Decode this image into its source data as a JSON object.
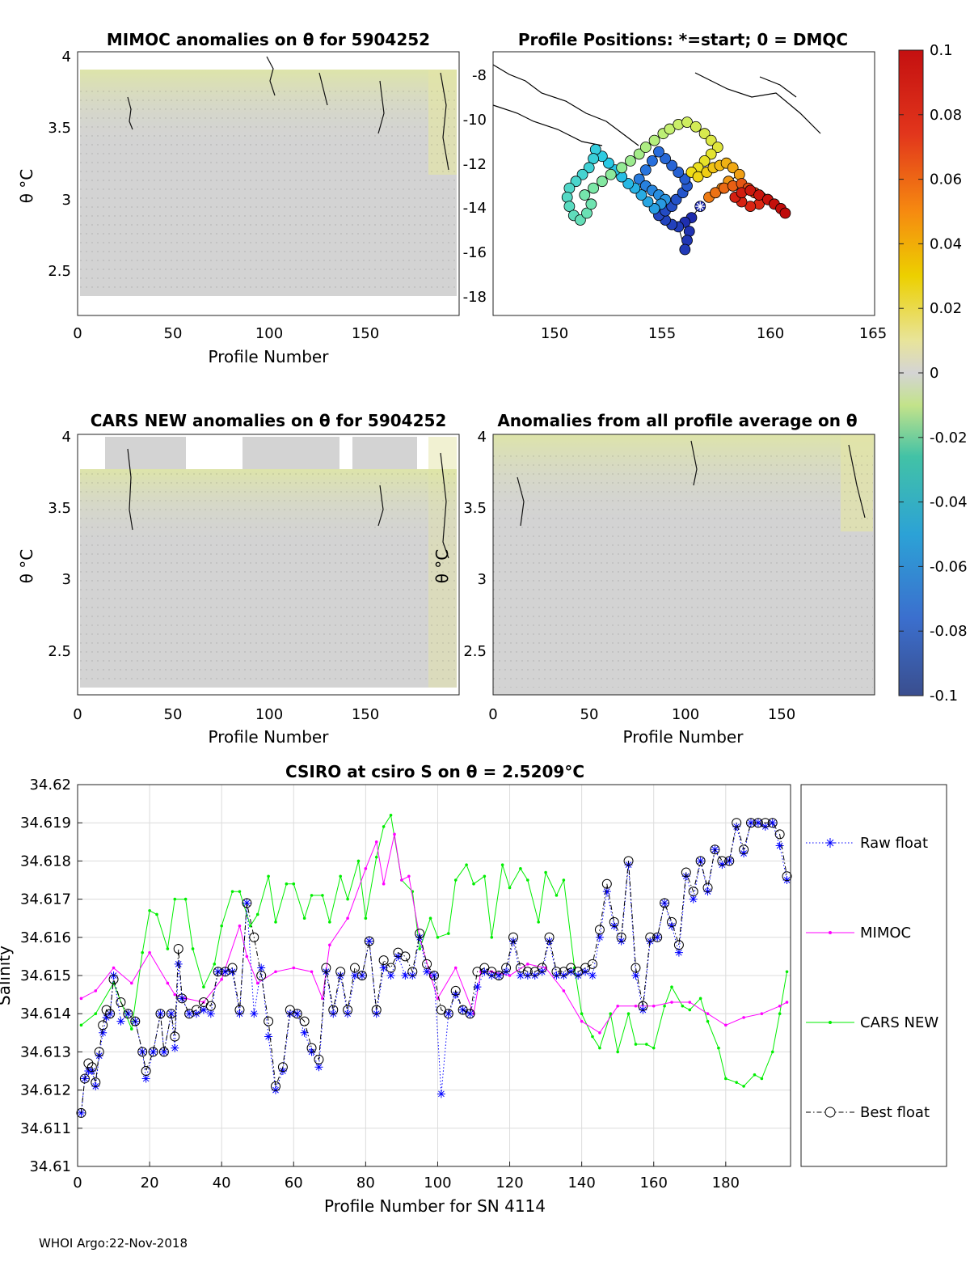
{
  "footer": "WHOI Argo:22-Nov-2018",
  "panels": {
    "mimoc": {
      "title": "MIMOC anomalies on θ  for 5904252",
      "ylabel": "θ °C",
      "xlabel": "Profile Number",
      "xticks": [
        "0",
        "50",
        "100",
        "150"
      ],
      "yticks": [
        "2.5",
        "3",
        "3.5",
        "4"
      ],
      "xlim": [
        0,
        198
      ],
      "ylim": [
        2.2,
        4.02
      ]
    },
    "map": {
      "title": "Profile Positions: *=start; 0 = DMQC",
      "xticks": [
        "150",
        "155",
        "160",
        "165"
      ],
      "yticks": [
        "-8",
        "-10",
        "-12",
        "-14",
        "-16",
        "-18"
      ],
      "xlim": [
        147.5,
        165
      ],
      "ylim": [
        -18.8,
        -7.2
      ]
    },
    "cars": {
      "title": "CARS NEW anomalies on θ for 5904252",
      "ylabel": "θ °C",
      "xlabel": "Profile Number",
      "xticks": [
        "0",
        "50",
        "100",
        "150"
      ],
      "yticks": [
        "2.5",
        "3",
        "3.5",
        "4"
      ],
      "xlim": [
        0,
        198
      ],
      "ylim": [
        2.2,
        4.02
      ]
    },
    "avg": {
      "title": "Anomalies from all profile average on θ",
      "ylabel": "θ °C",
      "xlabel": "Profile Number",
      "xticks": [
        "0",
        "50",
        "100",
        "150"
      ],
      "yticks": [
        "2.5",
        "3",
        "3.5",
        "4"
      ],
      "xlim": [
        0,
        198
      ],
      "ylim": [
        2.2,
        4.02
      ]
    }
  },
  "colorbar": {
    "ticks": [
      "0.1",
      "0.08",
      "0.06",
      "0.04",
      "0.02",
      "0",
      "-0.02",
      "-0.04",
      "-0.06",
      "-0.08",
      "-0.1"
    ],
    "range": [
      -0.1,
      0.1
    ]
  },
  "chart_data": {
    "type": "line",
    "title": "CSIRO at csiro S on θ = 2.5209°C",
    "xlabel": "Profile Number for SN 4114",
    "ylabel": "Salinity",
    "xlim": [
      0,
      198
    ],
    "ylim": [
      34.61,
      34.62
    ],
    "xticks": [
      "0",
      "20",
      "40",
      "60",
      "80",
      "100",
      "120",
      "140",
      "160",
      "180"
    ],
    "yticks": [
      "34.61",
      "34.611",
      "34.612",
      "34.613",
      "34.614",
      "34.615",
      "34.616",
      "34.617",
      "34.618",
      "34.619",
      "34.62"
    ],
    "grid": true,
    "legend_position": "outside-right",
    "series": [
      {
        "name": "Raw float",
        "color": "#0000ff",
        "style": "dotted",
        "marker": "asterisk",
        "x": [
          1,
          2,
          3,
          4,
          5,
          6,
          7,
          8,
          9,
          10,
          12,
          14,
          16,
          18,
          19,
          21,
          23,
          24,
          26,
          27,
          28,
          29,
          31,
          33,
          35,
          37,
          39,
          41,
          43,
          45,
          47,
          49,
          51,
          53,
          55,
          57,
          59,
          61,
          63,
          65,
          67,
          69,
          71,
          73,
          75,
          77,
          79,
          81,
          83,
          85,
          87,
          89,
          91,
          93,
          95,
          97,
          99,
          101,
          103,
          105,
          107,
          109,
          111,
          113,
          115,
          117,
          119,
          121,
          123,
          125,
          127,
          129,
          131,
          133,
          135,
          137,
          139,
          141,
          143,
          145,
          147,
          149,
          151,
          153,
          155,
          157,
          159,
          161,
          163,
          165,
          167,
          169,
          171,
          173,
          175,
          177,
          179,
          181,
          183,
          185,
          187,
          189,
          191,
          193,
          195,
          197
        ],
        "y": [
          34.6114,
          34.6123,
          34.6125,
          34.6125,
          34.6121,
          34.6129,
          34.6135,
          34.6139,
          34.614,
          34.615,
          34.6138,
          34.614,
          34.6138,
          34.613,
          34.6123,
          34.613,
          34.614,
          34.613,
          34.614,
          34.6131,
          34.6153,
          34.6144,
          34.614,
          34.614,
          34.6141,
          34.614,
          34.6151,
          34.6151,
          34.6151,
          34.614,
          34.6169,
          34.614,
          34.6152,
          34.6134,
          34.612,
          34.6125,
          34.614,
          34.614,
          34.6135,
          34.613,
          34.6126,
          34.6151,
          34.614,
          34.615,
          34.614,
          34.615,
          34.615,
          34.6159,
          34.614,
          34.6152,
          34.615,
          34.6155,
          34.615,
          34.615,
          34.616,
          34.6151,
          34.615,
          34.6119,
          34.614,
          34.6145,
          34.6141,
          34.614,
          34.6147,
          34.6151,
          34.615,
          34.615,
          34.6151,
          34.6159,
          34.615,
          34.615,
          34.615,
          34.6151,
          34.6159,
          34.615,
          34.615,
          34.6151,
          34.615,
          34.6151,
          34.615,
          34.616,
          34.6172,
          34.6163,
          34.6159,
          34.6179,
          34.615,
          34.6141,
          34.6159,
          34.616,
          34.6169,
          34.6163,
          34.6156,
          34.6176,
          34.617,
          34.618,
          34.6172,
          34.6183,
          34.6179,
          34.618,
          34.6189,
          34.6182,
          34.619,
          34.619,
          34.6189,
          34.619,
          34.6184,
          34.6175
        ]
      },
      {
        "name": "MIMOC",
        "color": "#ff00ff",
        "style": "solid",
        "marker": "dot",
        "x": [
          1,
          5,
          10,
          15,
          20,
          25,
          27,
          30,
          35,
          40,
          45,
          47,
          50,
          55,
          60,
          65,
          68,
          70,
          75,
          80,
          83,
          85,
          88,
          90,
          92,
          95,
          98,
          100,
          105,
          110,
          112,
          115,
          120,
          125,
          130,
          135,
          140,
          145,
          150,
          155,
          160,
          165,
          170,
          175,
          180,
          185,
          190,
          195,
          197
        ],
        "y": [
          34.6144,
          34.6146,
          34.6152,
          34.6148,
          34.6156,
          34.6148,
          34.6145,
          34.6144,
          34.6143,
          34.6149,
          34.6163,
          34.6155,
          34.6148,
          34.6151,
          34.6152,
          34.6151,
          34.6144,
          34.6158,
          34.6165,
          34.6178,
          34.6185,
          34.6174,
          34.6187,
          34.6175,
          34.6176,
          34.616,
          34.615,
          34.6144,
          34.6152,
          34.614,
          34.6151,
          34.6151,
          34.615,
          34.6153,
          34.6152,
          34.6146,
          34.6138,
          34.6135,
          34.6142,
          34.6142,
          34.6142,
          34.6143,
          34.6143,
          34.614,
          34.6137,
          34.6139,
          34.614,
          34.6142,
          34.6143
        ]
      },
      {
        "name": "CARS NEW",
        "color": "#00ee00",
        "style": "solid",
        "marker": "dot",
        "x": [
          1,
          5,
          10,
          15,
          18,
          20,
          22,
          25,
          27,
          30,
          32,
          35,
          38,
          40,
          43,
          45,
          48,
          50,
          53,
          55,
          58,
          60,
          63,
          65,
          68,
          70,
          73,
          75,
          78,
          80,
          83,
          85,
          87,
          90,
          93,
          95,
          98,
          100,
          103,
          105,
          108,
          110,
          113,
          115,
          118,
          120,
          123,
          125,
          128,
          130,
          133,
          135,
          138,
          140,
          143,
          145,
          148,
          150,
          153,
          155,
          158,
          160,
          163,
          165,
          168,
          170,
          173,
          175,
          178,
          180,
          183,
          185,
          188,
          190,
          193,
          195,
          197
        ],
        "y": [
          34.6137,
          34.614,
          34.6148,
          34.6136,
          34.6156,
          34.6167,
          34.6166,
          34.6157,
          34.617,
          34.617,
          34.6157,
          34.6147,
          34.6153,
          34.6163,
          34.6172,
          34.6172,
          34.6163,
          34.6166,
          34.6176,
          34.6164,
          34.6174,
          34.6174,
          34.6165,
          34.6171,
          34.6171,
          34.6164,
          34.6176,
          34.617,
          34.618,
          34.6165,
          34.6181,
          34.6189,
          34.6192,
          34.6175,
          34.6172,
          34.6157,
          34.6165,
          34.616,
          34.6161,
          34.6175,
          34.6179,
          34.6174,
          34.6176,
          34.616,
          34.6179,
          34.6173,
          34.6178,
          34.6175,
          34.6164,
          34.6177,
          34.6171,
          34.6175,
          34.6152,
          34.614,
          34.6134,
          34.6131,
          34.614,
          34.613,
          34.614,
          34.6132,
          34.6132,
          34.6131,
          34.6142,
          34.6147,
          34.6142,
          34.6141,
          34.6144,
          34.6138,
          34.6131,
          34.6123,
          34.6122,
          34.6121,
          34.6124,
          34.6123,
          34.613,
          34.614,
          34.6151
        ]
      },
      {
        "name": "Best float",
        "color": "#000000",
        "style": "dashdot",
        "marker": "circle",
        "x": [
          1,
          2,
          3,
          4,
          5,
          6,
          7,
          8,
          9,
          10,
          12,
          14,
          16,
          18,
          19,
          21,
          23,
          24,
          26,
          27,
          28,
          29,
          31,
          33,
          35,
          37,
          39,
          41,
          43,
          45,
          47,
          49,
          51,
          53,
          55,
          57,
          59,
          61,
          63,
          65,
          67,
          69,
          71,
          73,
          75,
          77,
          79,
          81,
          83,
          85,
          87,
          89,
          91,
          93,
          95,
          97,
          99,
          101,
          103,
          105,
          107,
          109,
          111,
          113,
          115,
          117,
          119,
          121,
          123,
          125,
          127,
          129,
          131,
          133,
          135,
          137,
          139,
          141,
          143,
          145,
          147,
          149,
          151,
          153,
          155,
          157,
          159,
          161,
          163,
          165,
          167,
          169,
          171,
          173,
          175,
          177,
          179,
          181,
          183,
          185,
          187,
          189,
          191,
          193,
          195,
          197
        ],
        "y": [
          34.6114,
          34.6123,
          34.6127,
          34.6126,
          34.6122,
          34.613,
          34.6137,
          34.6141,
          34.614,
          34.6149,
          34.6143,
          34.614,
          34.6138,
          34.613,
          34.6125,
          34.613,
          34.614,
          34.613,
          34.614,
          34.6134,
          34.6157,
          34.6144,
          34.614,
          34.6141,
          34.6143,
          34.6142,
          34.6151,
          34.6151,
          34.6152,
          34.6141,
          34.6169,
          34.616,
          34.615,
          34.6138,
          34.6121,
          34.6126,
          34.6141,
          34.614,
          34.6138,
          34.6131,
          34.6128,
          34.6152,
          34.6141,
          34.6151,
          34.6141,
          34.6152,
          34.615,
          34.6159,
          34.6141,
          34.6154,
          34.6152,
          34.6156,
          34.6155,
          34.6151,
          34.6161,
          34.6153,
          34.615,
          34.6141,
          34.614,
          34.6146,
          34.6141,
          34.614,
          34.6151,
          34.6152,
          34.6151,
          34.615,
          34.6152,
          34.616,
          34.6152,
          34.6151,
          34.6151,
          34.6152,
          34.616,
          34.6151,
          34.6151,
          34.6152,
          34.6151,
          34.6152,
          34.6153,
          34.6162,
          34.6174,
          34.6164,
          34.616,
          34.618,
          34.6152,
          34.6142,
          34.616,
          34.616,
          34.6169,
          34.6164,
          34.6158,
          34.6177,
          34.6172,
          34.618,
          34.6173,
          34.6183,
          34.618,
          34.618,
          34.619,
          34.6183,
          34.619,
          34.619,
          34.619,
          34.619,
          34.6187,
          34.6176
        ]
      }
    ]
  },
  "track": {
    "lon": [
      157.0,
      156.6,
      156.3,
      156.5,
      156.4,
      156.3,
      156.0,
      155.7,
      155.4,
      155.1,
      155.4,
      155.7,
      155.9,
      156.2,
      156.4,
      156.3,
      156.0,
      155.7,
      155.4,
      155.1,
      154.8,
      154.5,
      154.2,
      154.5,
      154.8,
      155.1,
      155.4,
      155.2,
      154.9,
      154.6,
      154.3,
      154.0,
      153.7,
      153.4,
      153.1,
      152.8,
      152.5,
      152.2,
      152.1,
      151.9,
      151.6,
      151.3,
      151.0,
      150.9,
      151.0,
      151.2,
      151.5,
      151.8,
      152.0,
      151.7,
      152.1,
      152.5,
      152.9,
      153.4,
      153.8,
      154.2,
      154.5,
      154.9,
      155.3,
      155.6,
      156.0,
      156.4,
      156.8,
      157.2,
      157.5,
      157.8,
      157.5,
      157.2,
      156.9,
      156.6,
      156.9,
      157.3,
      157.6,
      157.9,
      158.2,
      158.5,
      158.8,
      158.3,
      158.0,
      157.7,
      157.4,
      157.7,
      158.1,
      158.5,
      158.9,
      159.2,
      159.5,
      159.8,
      160.1,
      159.7,
      159.3,
      158.9,
      158.6,
      158.9,
      159.3,
      159.7,
      160.1,
      160.4,
      160.7,
      160.9
    ],
    "lat": [
      -14.0,
      -14.5,
      -14.7,
      -15.1,
      -15.5,
      -15.9,
      -14.9,
      -14.8,
      -14.6,
      -14.4,
      -14.2,
      -14.0,
      -13.7,
      -13.4,
      -13.1,
      -12.8,
      -12.5,
      -12.2,
      -11.9,
      -11.6,
      -12.0,
      -12.4,
      -12.8,
      -13.1,
      -13.3,
      -13.5,
      -13.7,
      -13.9,
      -14.1,
      -13.8,
      -13.5,
      -13.2,
      -13.0,
      -12.7,
      -12.4,
      -12.1,
      -11.8,
      -11.5,
      -11.9,
      -12.3,
      -12.6,
      -12.9,
      -13.2,
      -13.6,
      -14.0,
      -14.4,
      -14.6,
      -14.3,
      -13.9,
      -13.5,
      -13.2,
      -12.9,
      -12.6,
      -12.3,
      -12.0,
      -11.7,
      -11.4,
      -11.1,
      -10.8,
      -10.6,
      -10.4,
      -10.3,
      -10.5,
      -10.8,
      -11.1,
      -11.4,
      -11.7,
      -12.0,
      -12.3,
      -12.5,
      -12.7,
      -12.5,
      -12.3,
      -12.2,
      -12.1,
      -12.3,
      -12.6,
      -12.9,
      -13.2,
      -13.4,
      -13.6,
      -13.4,
      -13.2,
      -13.1,
      -13.0,
      -13.2,
      -13.4,
      -13.6,
      -13.7,
      -13.9,
      -14.0,
      -13.8,
      -13.6,
      -13.4,
      -13.3,
      -13.5,
      -13.7,
      -13.9,
      -14.1,
      -14.3
    ]
  }
}
